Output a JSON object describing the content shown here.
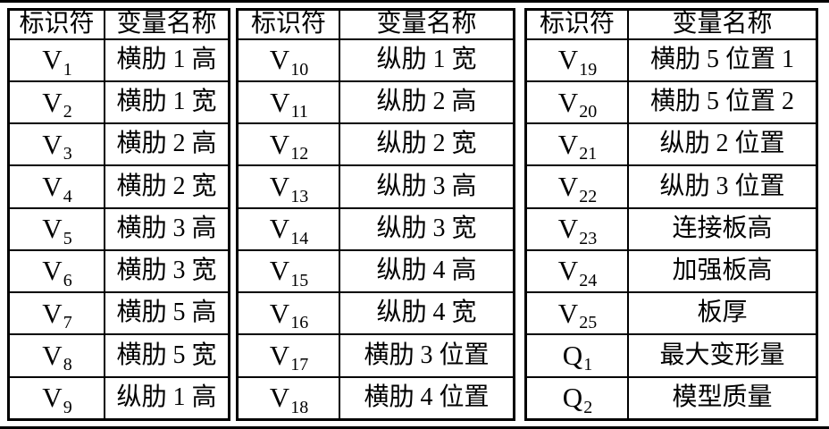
{
  "figure": {
    "background": "#ffffff",
    "line_color": "#000000"
  },
  "tables": [
    {
      "headers": [
        "标识符",
        "变量名称"
      ],
      "rows": [
        {
          "symbol": "V",
          "subscript": "1",
          "name": "横肋 1 高"
        },
        {
          "symbol": "V",
          "subscript": "2",
          "name": "横肋 1 宽"
        },
        {
          "symbol": "V",
          "subscript": "3",
          "name": "横肋 2 高"
        },
        {
          "symbol": "V",
          "subscript": "4",
          "name": "横肋 2 宽"
        },
        {
          "symbol": "V",
          "subscript": "5",
          "name": "横肋 3 高"
        },
        {
          "symbol": "V",
          "subscript": "6",
          "name": "横肋 3 宽"
        },
        {
          "symbol": "V",
          "subscript": "7",
          "name": "横肋 5 高"
        },
        {
          "symbol": "V",
          "subscript": "8",
          "name": "横肋 5 宽"
        },
        {
          "symbol": "V",
          "subscript": "9",
          "name": "纵肋 1 高"
        }
      ]
    },
    {
      "headers": [
        "标识符",
        "变量名称"
      ],
      "rows": [
        {
          "symbol": "V",
          "subscript": "10",
          "name": "纵肋 1 宽"
        },
        {
          "symbol": "V",
          "subscript": "11",
          "name": "纵肋 2 高"
        },
        {
          "symbol": "V",
          "subscript": "12",
          "name": "纵肋 2 宽"
        },
        {
          "symbol": "V",
          "subscript": "13",
          "name": "纵肋 3 高"
        },
        {
          "symbol": "V",
          "subscript": "14",
          "name": "纵肋 3 宽"
        },
        {
          "symbol": "V",
          "subscript": "15",
          "name": "纵肋 4 高"
        },
        {
          "symbol": "V",
          "subscript": "16",
          "name": "纵肋 4 宽"
        },
        {
          "symbol": "V",
          "subscript": "17",
          "name": "横肋 3 位置"
        },
        {
          "symbol": "V",
          "subscript": "18",
          "name": "横肋 4 位置"
        }
      ]
    },
    {
      "headers": [
        "标识符",
        "变量名称"
      ],
      "rows": [
        {
          "symbol": "V",
          "subscript": "19",
          "name": "横肋 5 位置 1"
        },
        {
          "symbol": "V",
          "subscript": "20",
          "name": "横肋 5 位置 2"
        },
        {
          "symbol": "V",
          "subscript": "21",
          "name": "纵肋 2 位置"
        },
        {
          "symbol": "V",
          "subscript": "22",
          "name": "纵肋 3 位置"
        },
        {
          "symbol": "V",
          "subscript": "23",
          "name": "连接板高"
        },
        {
          "symbol": "V",
          "subscript": "24",
          "name": "加强板高"
        },
        {
          "symbol": "V",
          "subscript": "25",
          "name": "板厚"
        },
        {
          "symbol": "Q",
          "subscript": "1",
          "name": "最大变形量"
        },
        {
          "symbol": "Q",
          "subscript": "2",
          "name": "模型质量"
        }
      ]
    }
  ]
}
